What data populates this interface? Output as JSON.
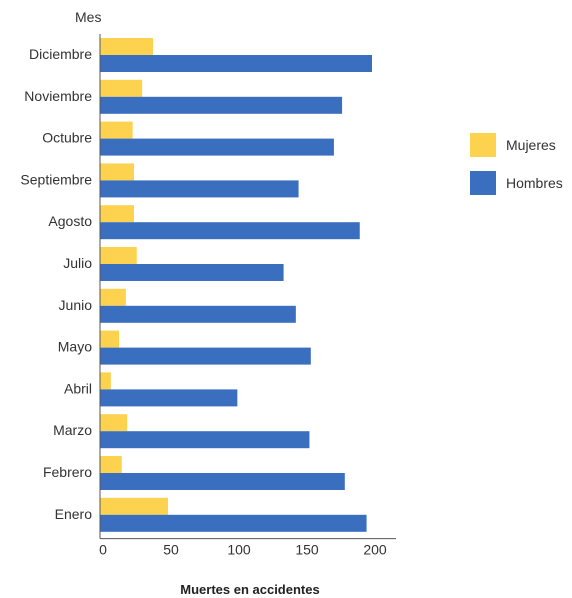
{
  "chart_data": {
    "type": "bar",
    "orientation": "horizontal",
    "title": "",
    "ylabel": "Mes",
    "xlabel": "Muertes en accidentes",
    "xlim": [
      0,
      215
    ],
    "xticks": [
      "0",
      "50",
      "100",
      "150",
      "200"
    ],
    "categories": [
      "Diciembre",
      "Noviembre",
      "Octubre",
      "Septiembre",
      "Agosto",
      "Julio",
      "Junio",
      "Mayo",
      "Abril",
      "Marzo",
      "Febrero",
      "Enero"
    ],
    "series": [
      {
        "name": "Mujeres",
        "color": "#fdd24f",
        "values": [
          39,
          31,
          24,
          25,
          25,
          27,
          19,
          14,
          8,
          20,
          16,
          50
        ]
      },
      {
        "name": "Hombres",
        "color": "#3a6fc0",
        "values": [
          200,
          178,
          172,
          146,
          191,
          135,
          144,
          155,
          101,
          154,
          180,
          196
        ]
      }
    ],
    "legend_position": "right",
    "grid": false
  }
}
